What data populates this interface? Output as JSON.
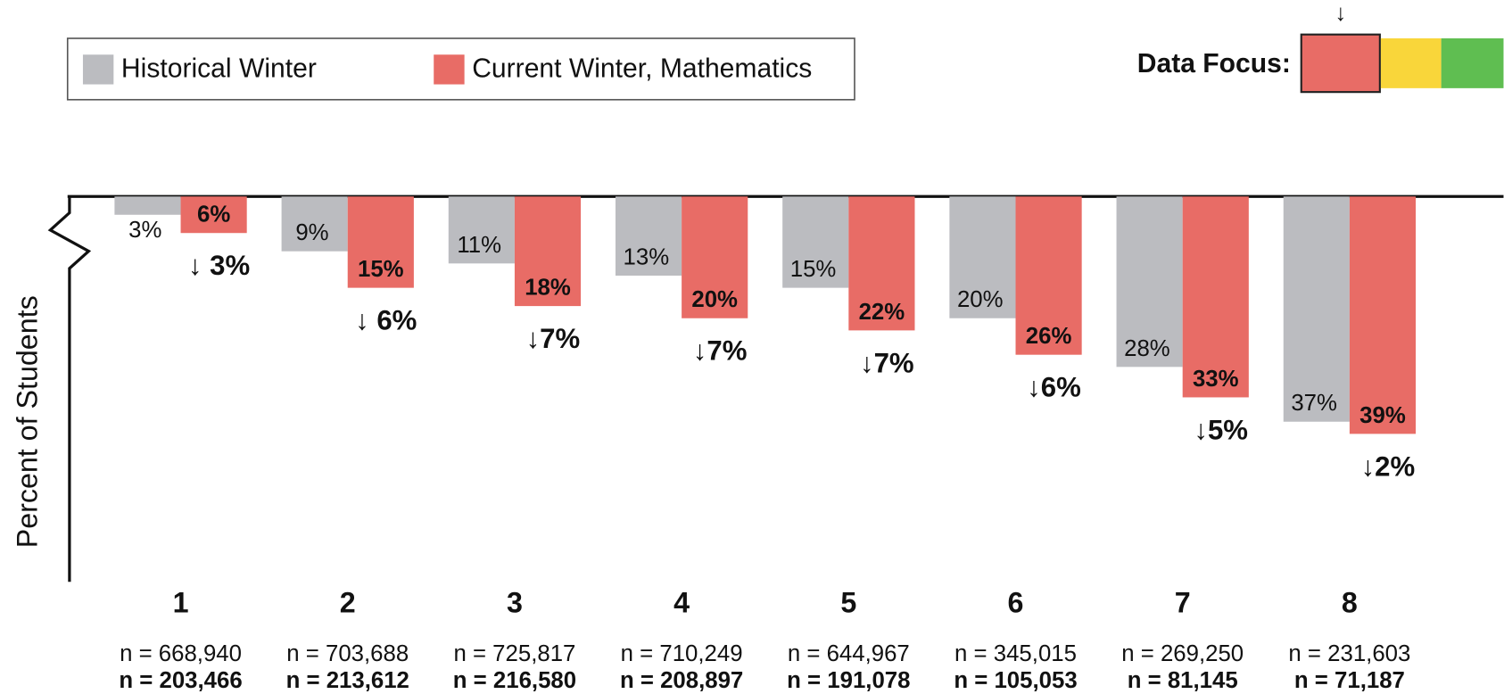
{
  "chart_data": {
    "type": "bar",
    "y_axis_label": "Percent of Students",
    "legend_title": "Data Focus:",
    "categories": [
      "1",
      "2",
      "3",
      "4",
      "5",
      "6",
      "7",
      "8"
    ],
    "series": [
      {
        "name": "Historical Winter",
        "color": "#bbbcc0",
        "values": [
          3,
          9,
          11,
          13,
          15,
          20,
          28,
          37
        ],
        "value_labels": [
          "3%",
          "9%",
          "11%",
          "13%",
          "15%",
          "20%",
          "28%",
          "37%"
        ],
        "n_labels": [
          "n = 668,940",
          "n = 703,688",
          "n = 725,817",
          "n =  710,249",
          "n = 644,967",
          "n = 345,015",
          "n = 269,250",
          "n = 231,603"
        ]
      },
      {
        "name": "Current Winter, Mathematics",
        "color": "#e86c66",
        "values": [
          6,
          15,
          18,
          20,
          22,
          26,
          33,
          39
        ],
        "value_labels": [
          "6%",
          "15%",
          "18%",
          "20%",
          "22%",
          "26%",
          "33%",
          "39%"
        ],
        "n_labels": [
          "n = 203,466",
          "n = 213,612",
          "n = 216,580",
          "n = 208,897",
          "n = 191,078",
          "n = 105,053",
          "n = 81,145",
          "n = 71,187"
        ]
      }
    ],
    "annotations": [
      "↓ 3%",
      "↓ 6%",
      "↓7%",
      "↓7%",
      "↓7%",
      "↓6%",
      "↓5%",
      "↓2%"
    ],
    "ylim": [
      0,
      63
    ]
  }
}
